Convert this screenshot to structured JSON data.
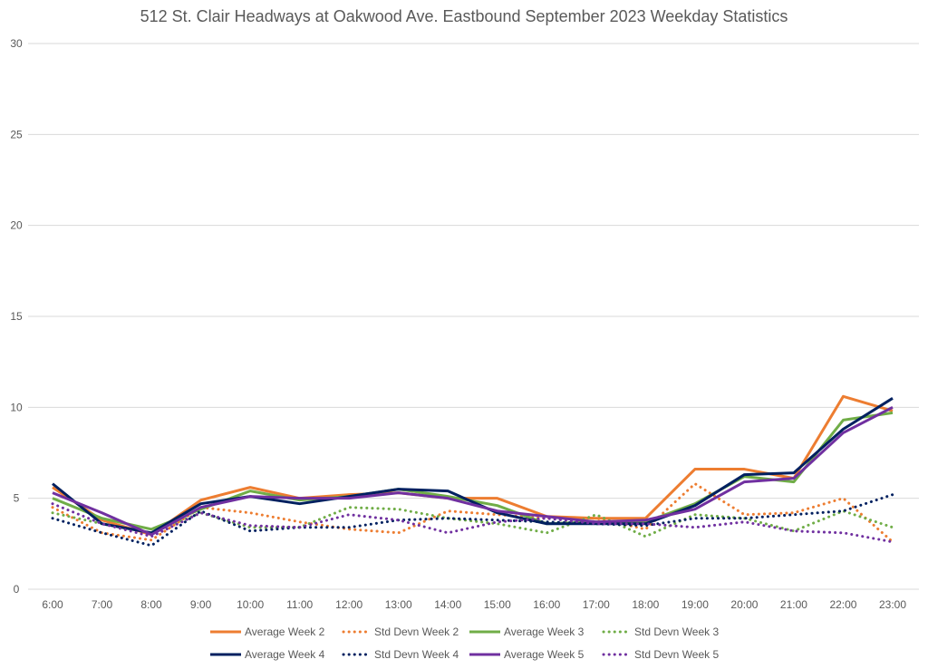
{
  "chart_data": {
    "type": "line",
    "title": "512 St. Clair Headways at Oakwood Ave. Eastbound September 2023 Weekday Statistics",
    "xlabel": "",
    "ylabel": "",
    "ylim": [
      0,
      30
    ],
    "yticks": [
      "0",
      "5",
      "10",
      "15",
      "20",
      "25",
      "30"
    ],
    "ytick_values": [
      0,
      5,
      10,
      15,
      20,
      25,
      30
    ],
    "grid": true,
    "legend_position": "bottom",
    "categories": [
      "6:00",
      "7:00",
      "8:00",
      "9:00",
      "10:00",
      "11:00",
      "12:00",
      "13:00",
      "14:00",
      "15:00",
      "16:00",
      "17:00",
      "18:00",
      "19:00",
      "20:00",
      "21:00",
      "22:00",
      "23:00"
    ],
    "series": [
      {
        "name": "Average Week 2",
        "color": "#ED7D31",
        "style": "solid",
        "values": [
          5.6,
          3.8,
          3.0,
          4.9,
          5.6,
          5.0,
          5.2,
          5.3,
          5.0,
          5.0,
          4.0,
          3.9,
          3.9,
          6.6,
          6.6,
          6.1,
          10.6,
          9.8
        ]
      },
      {
        "name": "Std Devn Week 2",
        "color": "#ED7D31",
        "style": "dotted",
        "values": [
          4.5,
          3.1,
          2.7,
          4.5,
          4.2,
          3.7,
          3.3,
          3.1,
          4.3,
          4.1,
          3.9,
          3.9,
          3.3,
          5.8,
          4.1,
          4.2,
          5.0,
          2.6
        ]
      },
      {
        "name": "Average Week 3",
        "color": "#70AD47",
        "style": "solid",
        "values": [
          5.0,
          3.9,
          3.3,
          4.4,
          5.4,
          4.9,
          5.1,
          5.5,
          5.1,
          4.6,
          3.6,
          3.7,
          3.7,
          4.7,
          6.2,
          5.9,
          9.3,
          9.7
        ]
      },
      {
        "name": "Std Devn Week 3",
        "color": "#70AD47",
        "style": "dotted",
        "values": [
          4.2,
          3.6,
          3.1,
          4.2,
          3.4,
          3.4,
          4.5,
          4.4,
          3.9,
          3.6,
          3.1,
          4.1,
          2.9,
          4.1,
          3.9,
          3.2,
          4.3,
          3.4
        ]
      },
      {
        "name": "Average Week 4",
        "color": "#002060",
        "style": "solid",
        "values": [
          5.8,
          3.6,
          3.1,
          4.7,
          5.1,
          4.7,
          5.1,
          5.5,
          5.4,
          4.2,
          3.6,
          3.6,
          3.6,
          4.6,
          6.3,
          6.4,
          8.8,
          10.5
        ]
      },
      {
        "name": "Std Devn Week 4",
        "color": "#002060",
        "style": "dotted",
        "values": [
          3.9,
          3.1,
          2.4,
          4.3,
          3.2,
          3.4,
          3.4,
          3.8,
          3.9,
          3.8,
          3.7,
          3.6,
          3.5,
          3.9,
          3.9,
          4.1,
          4.3,
          5.2
        ]
      },
      {
        "name": "Average Week 5",
        "color": "#7030A0",
        "style": "solid",
        "values": [
          5.3,
          4.2,
          3.0,
          4.5,
          5.1,
          5.0,
          5.0,
          5.3,
          5.0,
          4.3,
          4.0,
          3.7,
          3.8,
          4.4,
          5.9,
          6.1,
          8.6,
          10.0
        ]
      },
      {
        "name": "Std Devn Week 5",
        "color": "#7030A0",
        "style": "dotted",
        "values": [
          4.7,
          3.6,
          2.9,
          4.2,
          3.5,
          3.4,
          4.1,
          3.8,
          3.1,
          3.7,
          3.9,
          3.6,
          3.6,
          3.4,
          3.7,
          3.2,
          3.1,
          2.6
        ]
      }
    ]
  }
}
